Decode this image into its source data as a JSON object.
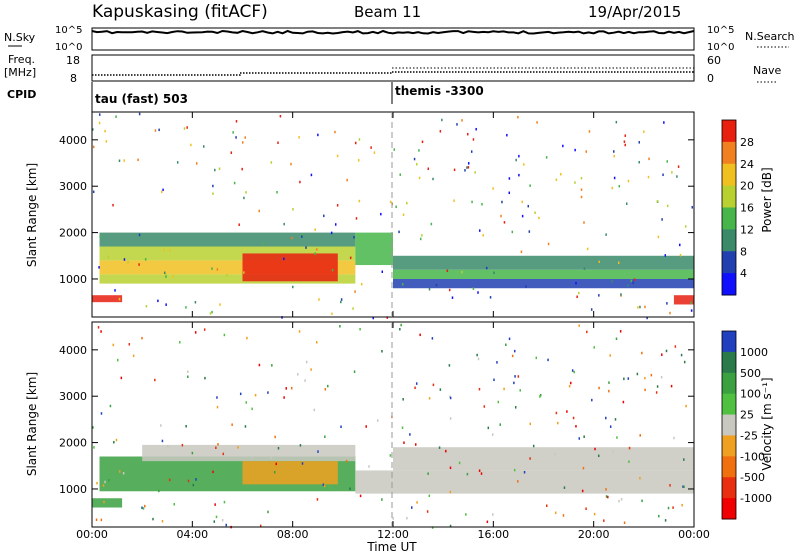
{
  "header": {
    "station": "Kapuskasing (fitACF)",
    "beam": "Beam 11",
    "date": "19/Apr/2015"
  },
  "panels": {
    "nsky": {
      "label": "N.Sky",
      "tick_top": "10^5",
      "tick_bottom": "10^0"
    },
    "nsearch": {
      "label": "N.Search",
      "tick_top": "10^5",
      "tick_bottom": "10^0"
    },
    "freq": {
      "label": "Freq.",
      "unit": "[MHz]",
      "tick_top": "18",
      "tick_bottom": "8"
    },
    "nave": {
      "label": "Nave",
      "tick_top": "60",
      "tick_bottom": "0"
    },
    "cpid": {
      "label": "CPID",
      "program1": "tau (fast) 503",
      "program2": "themis -3300"
    }
  },
  "chart_data": [
    {
      "type": "heatmap",
      "name": "power",
      "ylabel": "Slant Range [km]",
      "yticks": [
        "1000",
        "2000",
        "3000",
        "4000"
      ],
      "ylim": [
        180,
        4600
      ],
      "colorbar_label": "Power [dB]",
      "colorbar_ticks": [
        "4",
        "8",
        "12",
        "16",
        "20",
        "24",
        "28"
      ],
      "colorbar_colors": [
        "#1010ff",
        "#2040b0",
        "#3a8a6a",
        "#46b64a",
        "#b8d030",
        "#f0c020",
        "#f08020",
        "#e82010"
      ],
      "regions": [
        {
          "t0": 0.0,
          "t1": 1.2,
          "r0": 500,
          "r1": 650,
          "level": 7
        },
        {
          "t0": 0.3,
          "t1": 10.5,
          "r0": 900,
          "r1": 1100,
          "level": 4
        },
        {
          "t0": 0.3,
          "t1": 10.5,
          "r0": 1100,
          "r1": 1400,
          "level": 5
        },
        {
          "t0": 0.3,
          "t1": 10.5,
          "r0": 1400,
          "r1": 1700,
          "level": 4
        },
        {
          "t0": 0.3,
          "t1": 10.5,
          "r0": 1700,
          "r1": 2000,
          "level": 2
        },
        {
          "t0": 6.0,
          "t1": 9.8,
          "r0": 950,
          "r1": 1550,
          "level": 7
        },
        {
          "t0": 10.5,
          "t1": 12.0,
          "r0": 1300,
          "r1": 2000,
          "level": 3
        },
        {
          "t0": 12.0,
          "t1": 24.0,
          "r0": 1000,
          "r1": 1200,
          "level": 3
        },
        {
          "t0": 12.0,
          "t1": 24.0,
          "r0": 1200,
          "r1": 1500,
          "level": 2
        },
        {
          "t0": 12.0,
          "t1": 24.0,
          "r0": 800,
          "r1": 1000,
          "level": 1
        },
        {
          "t0": 23.2,
          "t1": 24.0,
          "r0": 450,
          "r1": 650,
          "level": 7
        }
      ]
    },
    {
      "type": "heatmap",
      "name": "velocity",
      "ylabel": "Slant Range [km]",
      "yticks": [
        "1000",
        "2000",
        "3000",
        "4000"
      ],
      "ylim": [
        180,
        4600
      ],
      "colorbar_label": "Velocity [m s⁻¹]",
      "colorbar_ticks": [
        "1000",
        "500",
        "100",
        "25",
        "-25",
        "-100",
        "-500",
        "-1000"
      ],
      "colorbar_colors": [
        "#2040c0",
        "#2a7a4a",
        "#3aa040",
        "#50c040",
        "#c8c8c0",
        "#f0a020",
        "#f07010",
        "#e83010",
        "#f00000"
      ],
      "regions": [
        {
          "t0": 0.3,
          "t1": 10.5,
          "r0": 950,
          "r1": 1700,
          "level": 2
        },
        {
          "t0": 2.0,
          "t1": 10.5,
          "r0": 1600,
          "r1": 1950,
          "level": 4
        },
        {
          "t0": 6.0,
          "t1": 9.8,
          "r0": 1100,
          "r1": 1600,
          "level": 5
        },
        {
          "t0": 0.0,
          "t1": 1.2,
          "r0": 600,
          "r1": 800,
          "level": 2
        },
        {
          "t0": 10.5,
          "t1": 24.0,
          "r0": 900,
          "r1": 1400,
          "level": 4
        },
        {
          "t0": 12.0,
          "t1": 24.0,
          "r0": 1400,
          "r1": 1900,
          "level": 4
        }
      ]
    }
  ],
  "time_axis": {
    "label": "Time UT",
    "ticks": [
      "00:00",
      "04:00",
      "08:00",
      "12:00",
      "16:00",
      "20:00",
      "00:00"
    ],
    "range_hours": [
      0,
      24
    ]
  }
}
